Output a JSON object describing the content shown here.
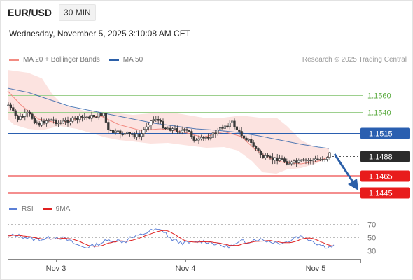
{
  "header": {
    "symbol": "EUR/USD",
    "timeframe": "30 MIN"
  },
  "timestamp": "Wednesday, November 5, 2025 3:10:08 AM CET",
  "legend": {
    "items": [
      {
        "label": "MA 20 + Bollinger Bands",
        "color": "#f28b82"
      },
      {
        "label": "MA 50",
        "color": "#2b5fa8"
      }
    ],
    "credit": "Research © 2025 Trading Central"
  },
  "rsi_legend": {
    "items": [
      {
        "label": "RSI",
        "color": "#5b7fd6"
      },
      {
        "label": "9MA",
        "color": "#e02020"
      }
    ]
  },
  "colors": {
    "resistance": "#7cc26a",
    "pivot": "#2a5fb0",
    "support": "#e81c1c",
    "last": "#2b2b2b",
    "arrow": "#2b5fa8"
  },
  "chart_data": {
    "type": "candlestick",
    "y_axis_levels": [
      {
        "value": "1.1560",
        "kind": "resistance"
      },
      {
        "value": "1.1540",
        "kind": "resistance"
      },
      {
        "value": "1.1515",
        "kind": "pivot"
      },
      {
        "value": "1.1488",
        "kind": "last"
      },
      {
        "value": "1.1465",
        "kind": "support"
      },
      {
        "value": "1.1445",
        "kind": "support"
      }
    ],
    "x_labels": [
      "Nov 3",
      "Nov 4",
      "Nov 5"
    ],
    "rsi_levels": [
      "70",
      "50",
      "30"
    ],
    "rsi_range": [
      10,
      90
    ],
    "price_range": [
      1.1438,
      1.1578
    ]
  }
}
